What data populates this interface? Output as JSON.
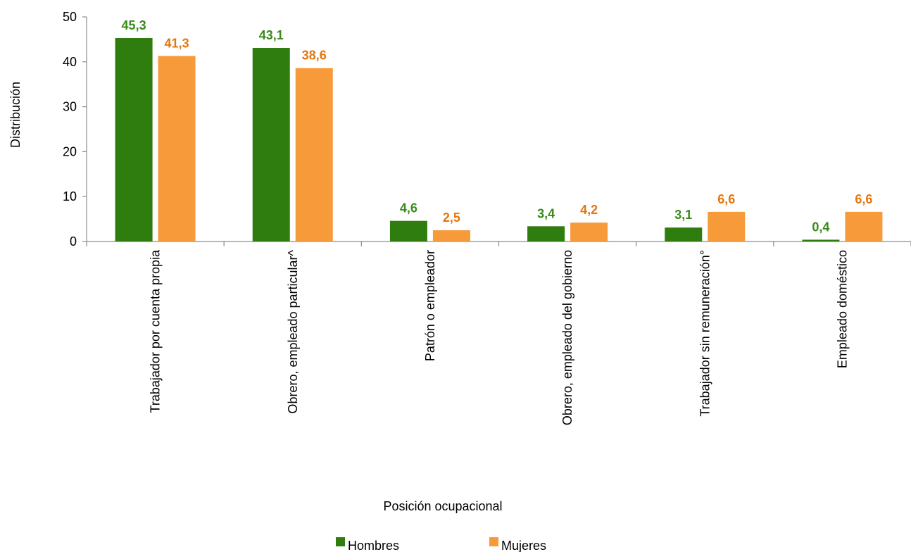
{
  "chart_data": {
    "type": "bar",
    "title": "",
    "xlabel": "Posición ocupacional",
    "ylabel": "Distribución",
    "ylim": [
      0,
      50
    ],
    "yticks": [
      "0",
      "10",
      "20",
      "30",
      "40",
      "50"
    ],
    "grid": false,
    "legend_position": "bottom",
    "categories": [
      "Trabajador por cuenta propia",
      "Obrero, empleado particular^",
      "Patrón o empleador",
      "Obrero, empleado del gobierno",
      "Trabajador sin remuneración°",
      "Empleado doméstico"
    ],
    "series": [
      {
        "name": "Hombres",
        "color": "#2e7d0e",
        "label_color": "#3a8a1a",
        "values": [
          45.3,
          43.1,
          4.6,
          3.4,
          3.1,
          0.4
        ],
        "labels": [
          "45,3",
          "43,1",
          "4,6",
          "3,4",
          "3,1",
          "0,4"
        ]
      },
      {
        "name": "Mujeres",
        "color": "#f79a3a",
        "label_color": "#e3760f",
        "values": [
          41.3,
          38.6,
          2.5,
          4.2,
          6.6,
          6.6
        ],
        "labels": [
          "41,3",
          "38,6",
          "2,5",
          "4,2",
          "6,6",
          "6,6"
        ]
      }
    ]
  }
}
